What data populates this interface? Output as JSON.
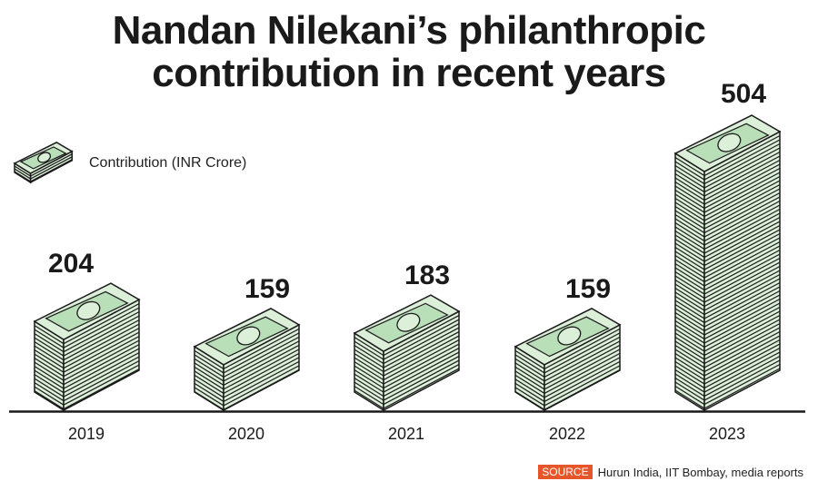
{
  "title": "Nandan Nilekani’s philanthropic contribution in recent years",
  "legend": {
    "label": "Contribution (INR Crore)",
    "icon": "money-stack-icon"
  },
  "source": {
    "tag": "SOURCE",
    "text": "Hurun India, IIT Bombay, media reports"
  },
  "colors": {
    "bill": "#b9dfb8",
    "bill_light": "#dcefd9",
    "accent": "#e8552a",
    "ink": "#1a1a1a"
  },
  "chart_data": {
    "type": "bar",
    "title": "Nandan Nilekani’s philanthropic contribution in recent years",
    "categories": [
      "2019",
      "2020",
      "2021",
      "2022",
      "2023"
    ],
    "values": [
      204,
      159,
      183,
      159,
      504
    ],
    "value_labels": [
      "204",
      "159",
      "183",
      "159",
      "504"
    ],
    "xlabel": "",
    "ylabel": "Contribution (INR Crore)",
    "grid": false,
    "legend_position": "top-left"
  }
}
